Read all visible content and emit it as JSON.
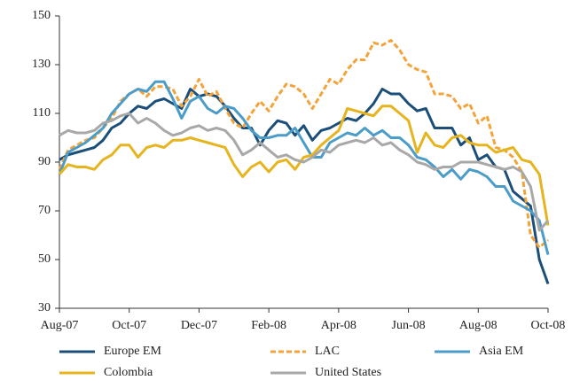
{
  "chart_data": {
    "type": "line",
    "categories": [
      "Aug-07",
      null,
      null,
      null,
      null,
      null,
      null,
      null,
      "Oct-07",
      null,
      null,
      null,
      null,
      null,
      null,
      null,
      "Dec-07",
      null,
      null,
      null,
      null,
      null,
      null,
      null,
      "Feb-08",
      null,
      null,
      null,
      null,
      null,
      null,
      null,
      "Apr-08",
      null,
      null,
      null,
      null,
      null,
      null,
      null,
      "Jun-08",
      null,
      null,
      null,
      null,
      null,
      null,
      null,
      "Aug-08",
      null,
      null,
      null,
      null,
      null,
      null,
      null,
      "Oct-08"
    ],
    "series": [
      {
        "name": "Europe EM",
        "color": "#1b4f79",
        "line_style": "solid",
        "values": [
          91,
          93,
          94,
          95,
          96,
          99,
          104,
          106,
          110,
          113,
          112,
          115,
          116,
          114,
          112,
          120,
          117,
          118,
          117,
          113,
          108,
          104,
          104,
          97,
          103,
          107,
          106,
          101,
          105,
          99,
          103,
          104,
          106,
          108,
          107,
          110,
          114,
          120,
          118,
          118,
          114,
          111,
          112,
          104,
          104,
          104,
          97,
          100,
          91,
          93,
          88,
          87,
          78,
          75,
          72,
          50,
          40
        ]
      },
      {
        "name": "LAC",
        "color": "#f2a33a",
        "line_style": "dashed",
        "values": [
          87,
          95,
          97,
          99,
          100,
          104,
          108,
          115,
          118,
          120,
          117,
          121,
          121,
          120,
          113,
          117,
          124,
          117,
          119,
          112,
          106,
          104,
          110,
          115,
          111,
          117,
          122,
          121,
          118,
          112,
          118,
          124,
          122,
          128,
          132,
          132,
          139,
          138,
          140,
          136,
          130,
          128,
          127,
          118,
          118,
          117,
          112,
          114,
          106,
          109,
          96,
          95,
          92,
          86,
          60,
          55,
          58
        ]
      },
      {
        "name": "Asia EM",
        "color": "#4b9cc8",
        "line_style": "solid",
        "values": [
          85,
          94,
          96,
          98,
          101,
          104,
          110,
          114,
          118,
          120,
          119,
          123,
          123,
          116,
          108,
          115,
          117,
          112,
          110,
          113,
          112,
          108,
          103,
          100,
          100,
          101,
          101,
          104,
          98,
          92,
          92,
          98,
          100,
          102,
          101,
          104,
          101,
          103,
          100,
          100,
          97,
          92,
          91,
          88,
          84,
          87,
          83,
          87,
          86,
          84,
          80,
          80,
          74,
          72,
          70,
          66,
          52
        ]
      },
      {
        "name": "Colombia",
        "color": "#e6b41e",
        "line_style": "solid",
        "values": [
          85,
          89,
          88,
          88,
          87,
          91,
          93,
          97,
          97,
          92,
          96,
          97,
          96,
          99,
          99,
          100,
          99,
          98,
          97,
          96,
          89,
          84,
          88,
          90,
          86,
          90,
          91,
          87,
          92,
          93,
          97,
          100,
          103,
          112,
          111,
          110,
          109,
          113,
          113,
          110,
          107,
          94,
          102,
          97,
          96,
          100,
          101,
          98,
          97,
          97,
          94,
          95,
          96,
          91,
          90,
          85,
          64
        ]
      },
      {
        "name": "United States",
        "color": "#a8a8a8",
        "line_style": "solid",
        "values": [
          101,
          103,
          102,
          102,
          103,
          106,
          107,
          109,
          110,
          106,
          108,
          106,
          103,
          101,
          102,
          104,
          105,
          103,
          104,
          103,
          99,
          93,
          95,
          98,
          95,
          92,
          93,
          91,
          90,
          92,
          95,
          94,
          97,
          98,
          99,
          98,
          100,
          97,
          98,
          95,
          93,
          90,
          89,
          87,
          88,
          88,
          90,
          90,
          90,
          89,
          88,
          87,
          88,
          86,
          80,
          62,
          66
        ]
      }
    ],
    "ylim": [
      30,
      150
    ],
    "yticks": [
      30,
      50,
      70,
      90,
      110,
      130,
      150
    ],
    "grid": false,
    "legend": "bottom"
  }
}
